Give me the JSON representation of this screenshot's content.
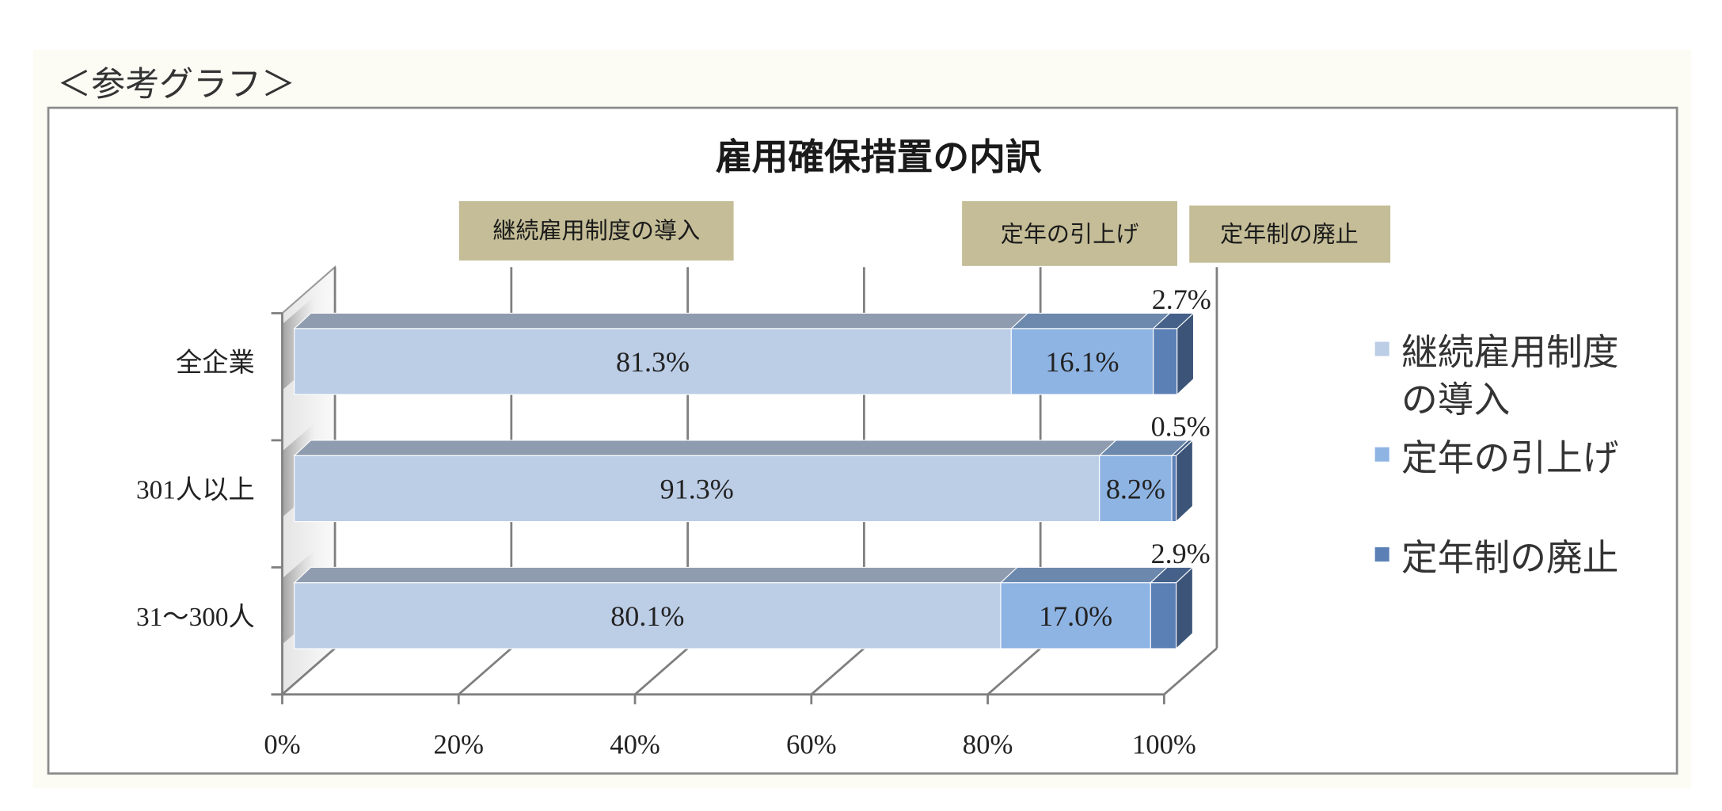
{
  "caption": "＜参考グラフ＞",
  "colors": {
    "annotation_fill": "#C4BD97"
  },
  "chart_data": {
    "type": "bar",
    "orientation": "horizontal",
    "stacking": "percent",
    "title": "雇用確保措置の内訳",
    "categories": [
      "全企業",
      "301人以上",
      "31～300人"
    ],
    "series": [
      {
        "name": "継続雇用制度の導入",
        "values": [
          81.3,
          91.3,
          80.1
        ],
        "color": "#BCCDE6"
      },
      {
        "name": "定年の引上げ",
        "values": [
          16.1,
          8.2,
          17.0
        ],
        "color": "#8EB4E3"
      },
      {
        "name": "定年制の廃止",
        "values": [
          2.7,
          0.5,
          2.9
        ],
        "color": "#5B80B6"
      }
    ],
    "data_labels": [
      [
        "81.3%",
        "16.1%",
        "2.7%"
      ],
      [
        "91.3%",
        "8.2%",
        "0.5%"
      ],
      [
        "80.1%",
        "17.0%",
        "2.9%"
      ]
    ],
    "x_ticks": [
      "0%",
      "20%",
      "40%",
      "60%",
      "80%",
      "100%"
    ],
    "xlim": [
      0,
      100
    ],
    "grid": true,
    "legend": {
      "position": "right",
      "entries": [
        {
          "lines": [
            "継続雇用制度",
            "の導入"
          ]
        },
        {
          "lines": [
            "定年の引上げ"
          ]
        },
        {
          "lines": [
            "定年制の廃止"
          ]
        }
      ]
    }
  }
}
